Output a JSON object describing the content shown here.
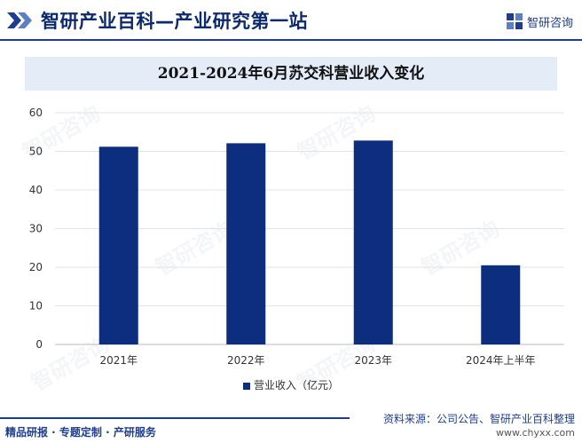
{
  "header": {
    "title": "智研产业百科—产业研究第一站",
    "brand_name": "智研咨询",
    "brand_color": "#1d3d8f"
  },
  "chart_data": {
    "type": "bar",
    "title": "2021-2024年6月苏交科营业收入变化",
    "categories": [
      "2021年",
      "2022年",
      "2023年",
      "2024年上半年"
    ],
    "series": [
      {
        "name": "营业收入（亿元）",
        "values": [
          51.2,
          52.1,
          52.8,
          20.5
        ],
        "color": "#0d2e7e"
      }
    ],
    "ylim": [
      0,
      60
    ],
    "yticks": [
      0,
      10,
      20,
      30,
      40,
      50,
      60
    ],
    "grid": true,
    "legend_position": "bottom"
  },
  "footer": {
    "left_text": "精品研报 · 专题定制 · 产研服务",
    "source": "资料来源：公司公告、智研产业百科整理",
    "site": "www.chyxx.com"
  }
}
